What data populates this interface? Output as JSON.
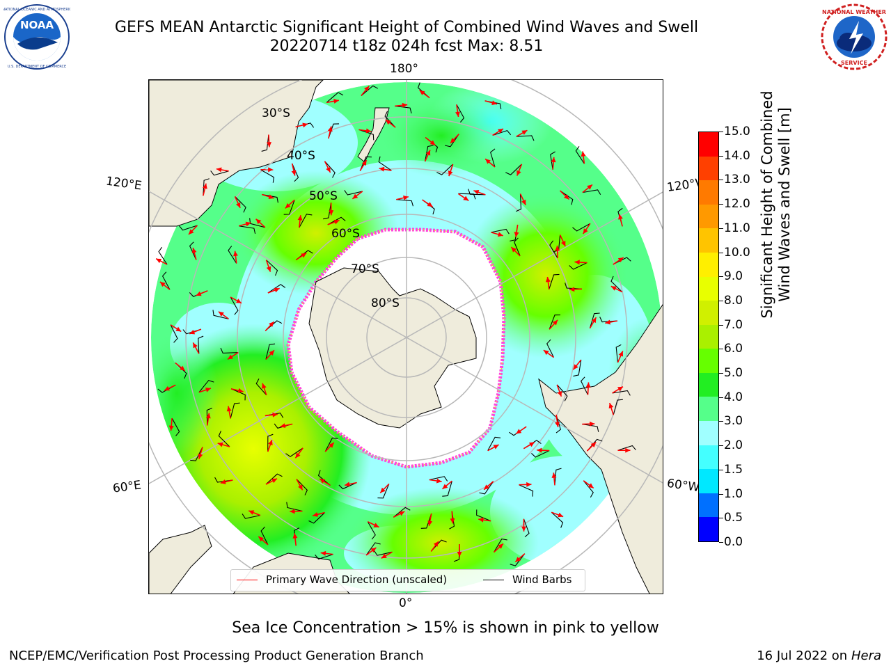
{
  "header": {
    "title_line1": "GEFS MEAN Antarctic Significant Height of Combined Wind Waves and Swell",
    "title_line2": "20220714 t18z 024h fcst   Max: 8.51"
  },
  "logos": {
    "left": {
      "icon": "noaa-logo-icon",
      "text": "NOAA",
      "ring_text": "NATIONAL OCEANIC AND ATMOSPHERIC ADMINISTRATION · U.S. DEPARTMENT OF COMMERCE"
    },
    "right": {
      "icon": "nws-logo-icon",
      "ring_text": "NATIONAL WEATHER SERVICE"
    }
  },
  "map": {
    "projection": "south-polar-stereographic",
    "longitude_labels": {
      "top": "180°",
      "bottom": "0°",
      "upper_left": "120°E",
      "upper_right": "120°W",
      "lower_left": "60°E",
      "lower_right": "60°W"
    },
    "latitude_labels": [
      "30°S",
      "40°S",
      "50°S",
      "60°S",
      "70°S",
      "80°S"
    ],
    "colors": {
      "land": "#efecdc",
      "ice": "#ffffff",
      "ice_edge_pink": "#ff44dd",
      "ice_edge_yellow": "#ffcc33",
      "grid": "#b8b8b8",
      "arrow": "#ff0000",
      "barb": "#000000"
    }
  },
  "colorbar": {
    "label_line1": "Significant Height of Combined",
    "label_line2": "Wind Waves and Swell [m]",
    "ticks": [
      "15.0",
      "14.0",
      "13.0",
      "12.0",
      "11.0",
      "10.0",
      "9.0",
      "8.0",
      "7.0",
      "6.0",
      "5.0",
      "4.0",
      "3.0",
      "2.0",
      "1.5",
      "1.0",
      "0.5",
      "0.0"
    ],
    "colors_bottom_to_top": [
      "#0000ff",
      "#0070ff",
      "#00e8ff",
      "#44ffff",
      "#a0ffff",
      "#55ff8a",
      "#22ee22",
      "#66ff00",
      "#aaf000",
      "#d0f000",
      "#e8ff00",
      "#ffef00",
      "#ffc400",
      "#ff9900",
      "#ff7a00",
      "#ff4000",
      "#ff0000"
    ]
  },
  "legend": {
    "wave_direction": "Primary Wave Direction (unscaled)",
    "wind_barbs": "Wind Barbs"
  },
  "subtitle": "Sea Ice Concentration > 15% is shown in pink to yellow",
  "footer": {
    "left": "NCEP/EMC/Verification Post Processing Product Generation Branch",
    "right_date": "16 Jul 2022 on ",
    "right_host": "Hera"
  }
}
